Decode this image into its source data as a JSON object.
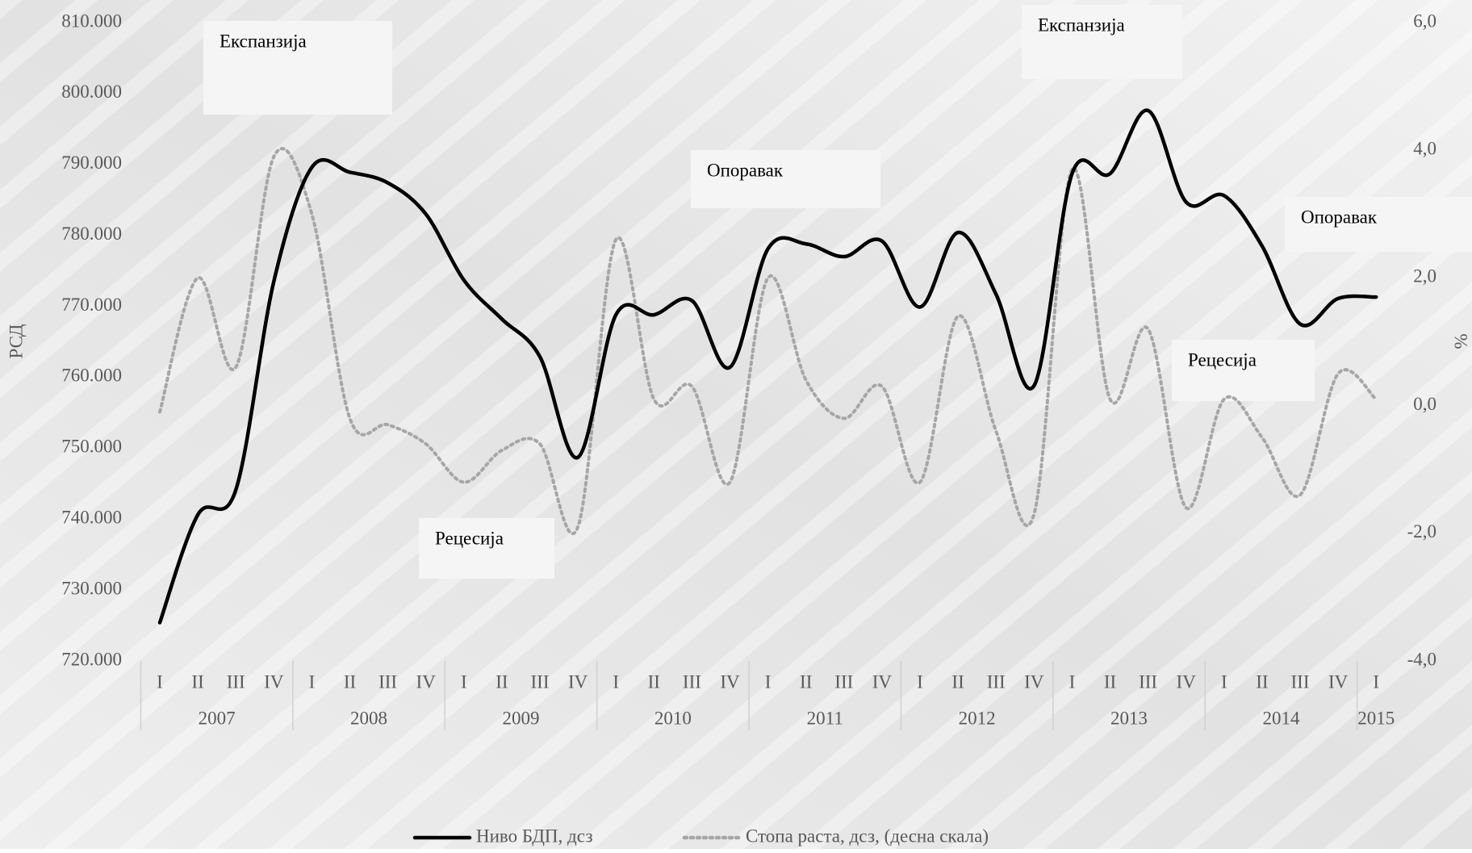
{
  "chart_data": {
    "type": "line",
    "categories": [
      "I",
      "II",
      "III",
      "IV",
      "I",
      "II",
      "III",
      "IV",
      "I",
      "II",
      "III",
      "IV",
      "I",
      "II",
      "III",
      "IV",
      "I",
      "II",
      "III",
      "IV",
      "I",
      "II",
      "III",
      "IV",
      "I",
      "II",
      "III",
      "IV",
      "I",
      "II",
      "III",
      "IV",
      "I"
    ],
    "years": [
      "2007",
      "2008",
      "2009",
      "2010",
      "2011",
      "2012",
      "2013",
      "2014",
      "2015"
    ],
    "series": [
      {
        "name": "Ниво БДП, дсз",
        "color": "#000000",
        "style": "solid",
        "values": [
          725400,
          740600,
          744100,
          773500,
          789600,
          788900,
          787400,
          783000,
          773700,
          768200,
          762900,
          748700,
          768800,
          768800,
          770800,
          761400,
          778100,
          778800,
          777000,
          779200,
          769900,
          780400,
          771700,
          758800,
          788700,
          788700,
          797600,
          784700,
          785600,
          778500,
          767500,
          771100,
          771300
        ]
      },
      {
        "name": "Стопа раста, дсз, (десна скала)",
        "color": "#a6a6a6",
        "style": "dotted",
        "axis": "y2",
        "values": [
          -0.1,
          2.0,
          0.6,
          3.9,
          3.0,
          -0.2,
          -0.3,
          -0.6,
          -1.2,
          -0.7,
          -0.6,
          -1.9,
          2.6,
          0.1,
          0.3,
          -1.2,
          2.0,
          0.4,
          -0.2,
          0.3,
          -1.2,
          1.4,
          -0.4,
          -1.7,
          3.7,
          0.1,
          1.2,
          -1.6,
          0.1,
          -0.5,
          -1.4,
          0.5,
          0.1
        ]
      }
    ],
    "ylabel": "РСД",
    "y2label": "%",
    "ylim": [
      720000,
      810000
    ],
    "yticks": [
      {
        "value": 720000,
        "label": "720.000"
      },
      {
        "value": 730000,
        "label": "730.000"
      },
      {
        "value": 740000,
        "label": "740.000"
      },
      {
        "value": 750000,
        "label": "750.000"
      },
      {
        "value": 760000,
        "label": "760.000"
      },
      {
        "value": 770000,
        "label": "770.000"
      },
      {
        "value": 780000,
        "label": "780.000"
      },
      {
        "value": 790000,
        "label": "790.000"
      },
      {
        "value": 800000,
        "label": "800.000"
      },
      {
        "value": 810000,
        "label": "810.000"
      }
    ],
    "y2lim": [
      -4,
      6
    ],
    "y2ticks": [
      {
        "value": -4,
        "label": "-4,0"
      },
      {
        "value": -2,
        "label": "-2,0"
      },
      {
        "value": 0,
        "label": "0,0"
      },
      {
        "value": 2,
        "label": "2,0"
      },
      {
        "value": 4,
        "label": "4,0"
      },
      {
        "value": 6,
        "label": "6,0"
      }
    ],
    "annotations": [
      "Експанзија",
      "Опоравак",
      "Експанзија",
      "Опоравак",
      "Рецесија",
      "Рецесија"
    ],
    "legend": "bottom"
  }
}
